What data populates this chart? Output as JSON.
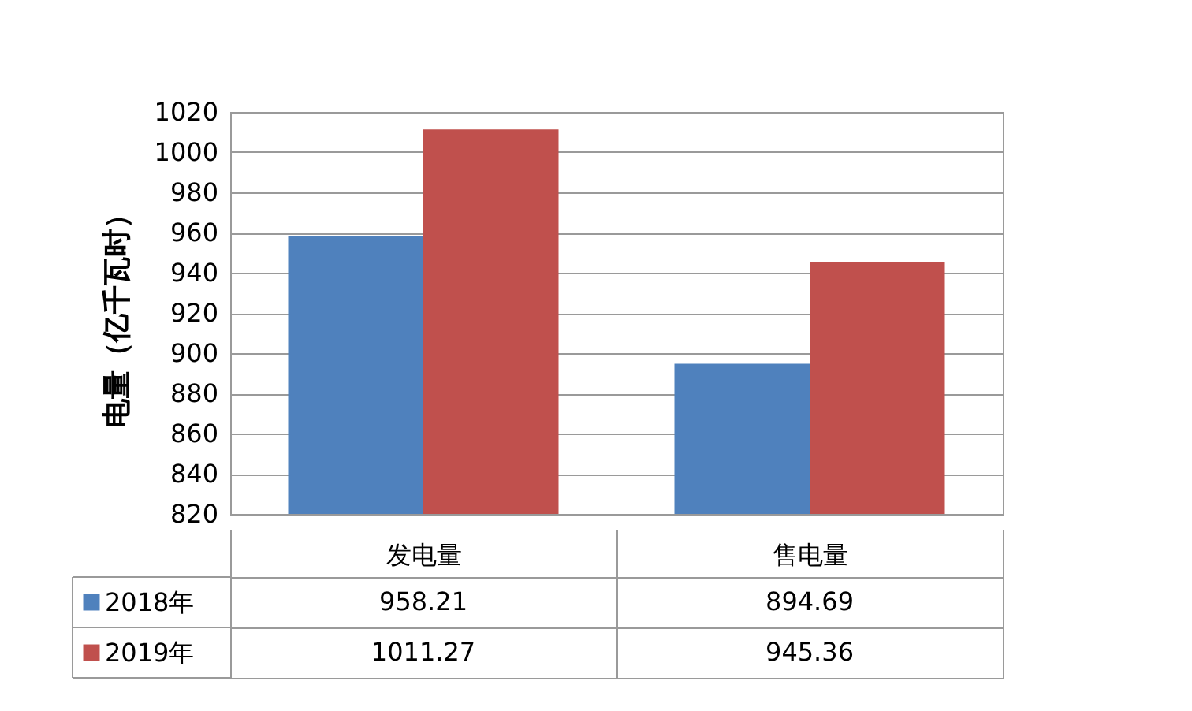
{
  "chart_data": {
    "type": "bar",
    "ylabel": "电量（亿千瓦时）",
    "categories": [
      "发电量",
      "售电量"
    ],
    "series": [
      {
        "name": "2018年",
        "color": "#4f81bd",
        "values": [
          958.21,
          894.69
        ]
      },
      {
        "name": "2019年",
        "color": "#c0504d",
        "values": [
          1011.27,
          945.36
        ]
      }
    ],
    "ylim": [
      820,
      1020
    ],
    "yticks": [
      820,
      840,
      860,
      880,
      900,
      920,
      940,
      960,
      980,
      1000,
      1020
    ],
    "grid": "y",
    "legend": "bottom left",
    "data_labels": true
  }
}
